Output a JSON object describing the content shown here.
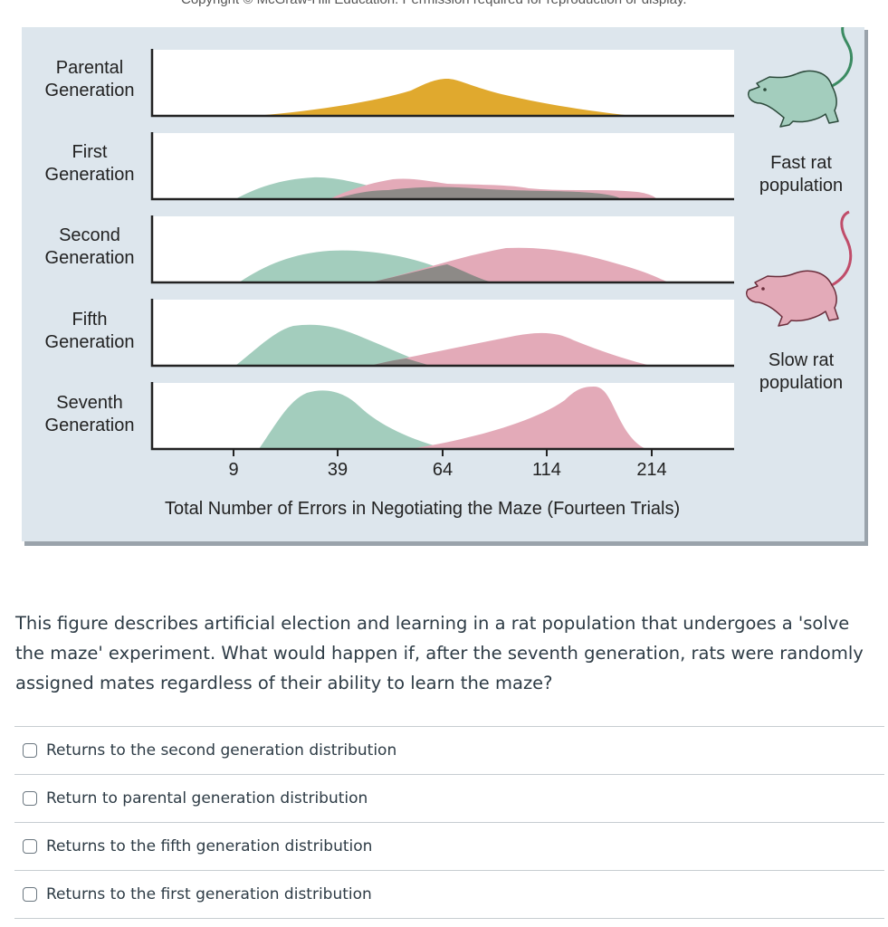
{
  "figure": {
    "top_caption": "Copyright © McGraw-Hill Education. Permission required for reproduction or display.",
    "rows": [
      {
        "label_line1": "Parental",
        "label_line2": "Generation"
      },
      {
        "label_line1": "First",
        "label_line2": "Generation"
      },
      {
        "label_line1": "Second",
        "label_line2": "Generation"
      },
      {
        "label_line1": "Fifth",
        "label_line2": "Generation"
      },
      {
        "label_line1": "Seventh",
        "label_line2": "Generation"
      }
    ],
    "ticks": [
      "9",
      "39",
      "64",
      "114",
      "214"
    ],
    "x_axis_title": "Total Number of Errors in Negotiating the Maze (Fourteen Trials)",
    "fast_label_line1": "Fast rat",
    "fast_label_line2": "population",
    "slow_label_line1": "Slow rat",
    "slow_label_line2": "population",
    "colors": {
      "parental": "#e0a92e",
      "fast": "#a3cdbd",
      "slow": "#e3aab8",
      "overlap": "#8d8a87",
      "background": "#dde6ed"
    }
  },
  "question": {
    "text": "This figure describes artificial election and learning in a rat population that undergoes a 'solve the maze' experiment. What would happen if, after the seventh generation, rats were randomly assigned mates regardless of their ability to learn the maze?"
  },
  "options": [
    {
      "label": "Returns to the second generation distribution"
    },
    {
      "label": "Return to parental generation distribution"
    },
    {
      "label": "Returns to the fifth generation distribution"
    },
    {
      "label": "Returns to the first generation distribution"
    }
  ]
}
